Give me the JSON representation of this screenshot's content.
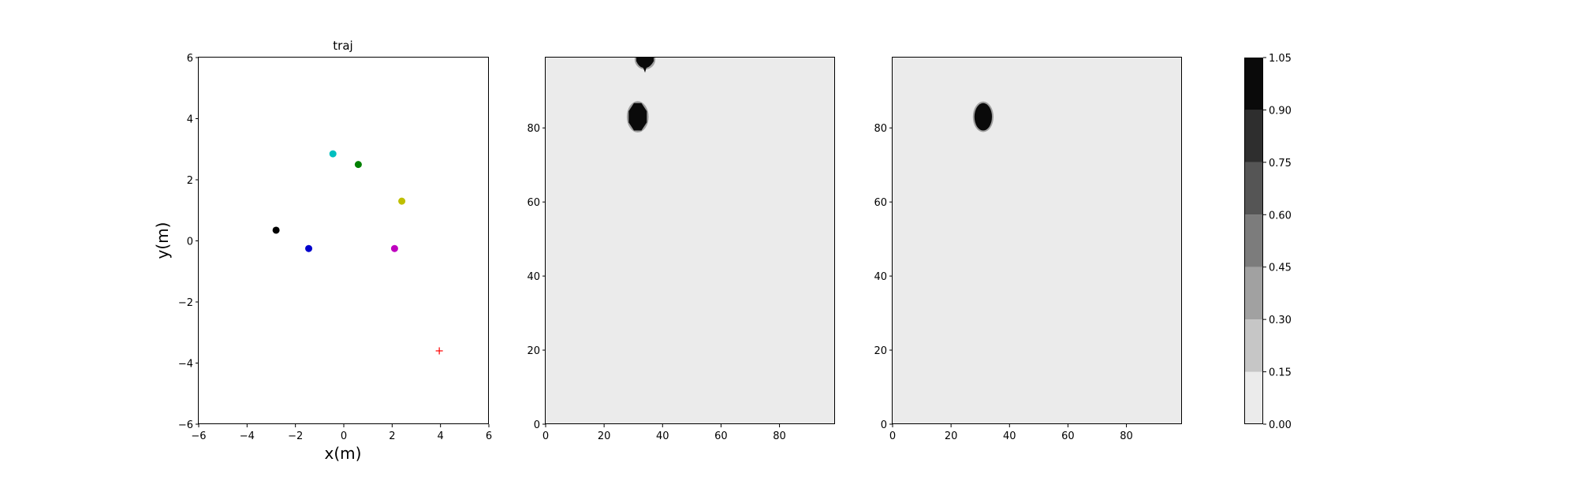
{
  "chart_data": [
    {
      "type": "scatter",
      "title": "traj",
      "xlabel": "x(m)",
      "ylabel": "y(m)",
      "xlim": [
        -6,
        6
      ],
      "ylim": [
        -6,
        6
      ],
      "xticks": [
        -6,
        -4,
        -2,
        0,
        2,
        4,
        6
      ],
      "yticks": [
        -6,
        -4,
        -2,
        0,
        2,
        4,
        6
      ],
      "tick_labels": [
        "−6",
        "−4",
        "−2",
        "0",
        "2",
        "4",
        "6"
      ],
      "grid": false,
      "points": [
        {
          "x": -2.8,
          "y": 0.35,
          "color": "#000000",
          "marker": "circle"
        },
        {
          "x": -1.45,
          "y": -0.25,
          "color": "#0000cc",
          "marker": "circle"
        },
        {
          "x": -0.45,
          "y": 2.85,
          "color": "#00bfbf",
          "marker": "circle"
        },
        {
          "x": 0.6,
          "y": 2.5,
          "color": "#008000",
          "marker": "circle"
        },
        {
          "x": 2.4,
          "y": 1.3,
          "color": "#bfbf00",
          "marker": "circle"
        },
        {
          "x": 2.1,
          "y": -0.25,
          "color": "#bf00bf",
          "marker": "circle"
        },
        {
          "x": 3.95,
          "y": -3.6,
          "color": "#ff0000",
          "marker": "plus"
        }
      ]
    },
    {
      "type": "heatmap",
      "xlim": [
        0,
        99
      ],
      "ylim": [
        0,
        99
      ],
      "xticks": [
        0,
        20,
        40,
        60,
        80
      ],
      "yticks": [
        0,
        20,
        40,
        60,
        80
      ],
      "background_value": 0.05,
      "blobs": [
        {
          "cx": 31.5,
          "cy": 83,
          "rx": 3.2,
          "ry": 3.8,
          "value": 1.0,
          "shape": "octagon"
        },
        {
          "cx": 34,
          "cy": 98.5,
          "rx": 3.0,
          "ry": 2.3,
          "value": 1.0,
          "shape": "blob-top"
        }
      ]
    },
    {
      "type": "heatmap",
      "xlim": [
        0,
        99
      ],
      "ylim": [
        0,
        99
      ],
      "xticks": [
        0,
        20,
        40,
        60,
        80
      ],
      "yticks": [
        0,
        20,
        40,
        60,
        80
      ],
      "background_value": 0.05,
      "blobs": [
        {
          "cx": 31,
          "cy": 83,
          "rx": 3.0,
          "ry": 3.7,
          "value": 1.0,
          "shape": "ellipse"
        }
      ]
    }
  ],
  "colorbar": {
    "levels": [
      0.0,
      0.15,
      0.3,
      0.45,
      0.6,
      0.75,
      0.9,
      1.05
    ],
    "labels": [
      "0.00",
      "0.15",
      "0.30",
      "0.45",
      "0.60",
      "0.75",
      "0.90",
      "1.05"
    ],
    "colors": [
      "#ebebeb",
      "#c6c6c6",
      "#a1a1a1",
      "#7c7c7c",
      "#555555",
      "#2e2e2e",
      "#0a0a0a"
    ]
  }
}
